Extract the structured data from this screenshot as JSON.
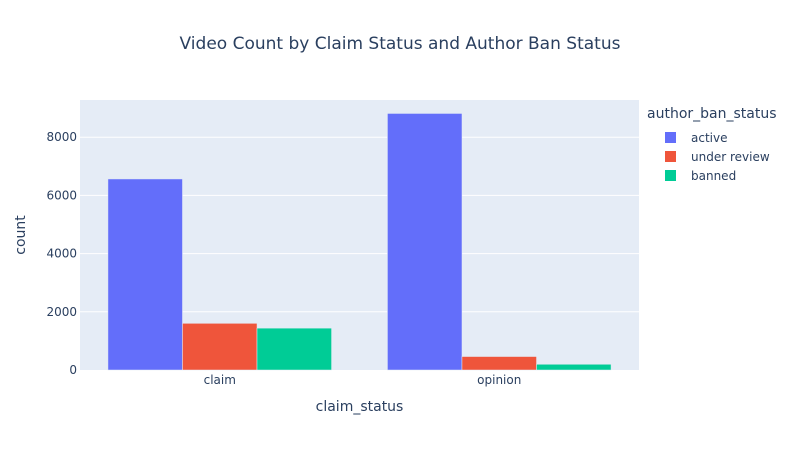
{
  "chart_data": {
    "type": "bar",
    "title": "Video Count by Claim Status and Author Ban Status",
    "xlabel": "claim_status",
    "ylabel": "count",
    "categories": [
      "claim",
      "opinion"
    ],
    "ylim": [
      0,
      9280
    ],
    "yticks": [
      0,
      2000,
      4000,
      6000,
      8000
    ],
    "ytick_labels": [
      "0",
      "2000",
      "4000",
      "6000",
      "8000"
    ],
    "grid": true,
    "legend_title": "author_ban_status",
    "legend_position": "right",
    "series": [
      {
        "name": "active",
        "color": "#636efa",
        "values": [
          6566,
          8817
        ]
      },
      {
        "name": "under review",
        "color": "#ef553b",
        "values": [
          1603,
          463
        ]
      },
      {
        "name": "banned",
        "color": "#00cc96",
        "values": [
          1439,
          196
        ]
      }
    ]
  }
}
